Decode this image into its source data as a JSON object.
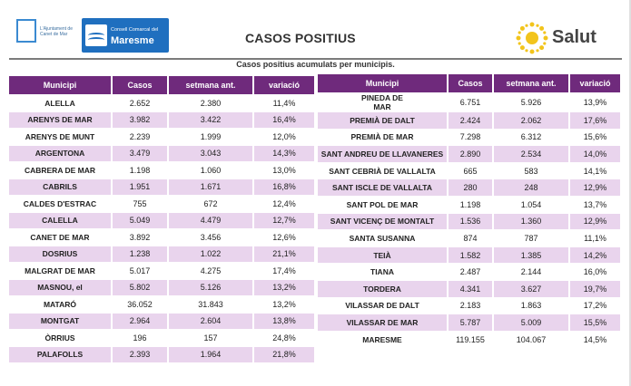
{
  "header": {
    "logo_ajuntament_text": "L'Ajuntament de Canet de Mar",
    "logo_consell_small": "Consell Comarcal del",
    "logo_consell_big": "Maresme",
    "title": "CASOS POSITIUS",
    "salut_label": "Salut"
  },
  "subtitle": "Casos positius acumulats per municipis.",
  "columns": [
    "Municipi",
    "Casos",
    "setmana ant.",
    "variació"
  ],
  "colors": {
    "header_purple": "#6f2a7c",
    "row_alt": "#e9d4ed",
    "sun_yellow": "#f2c41c"
  },
  "left_rows": [
    {
      "municipi": "ALELLA",
      "casos": "2.652",
      "setmana": "2.380",
      "variacio": "11,4%"
    },
    {
      "municipi": "ARENYS DE MAR",
      "casos": "3.982",
      "setmana": "3.422",
      "variacio": "16,4%"
    },
    {
      "municipi": "ARENYS DE MUNT",
      "casos": "2.239",
      "setmana": "1.999",
      "variacio": "12,0%"
    },
    {
      "municipi": "ARGENTONA",
      "casos": "3.479",
      "setmana": "3.043",
      "variacio": "14,3%"
    },
    {
      "municipi": "CABRERA DE MAR",
      "casos": "1.198",
      "setmana": "1.060",
      "variacio": "13,0%"
    },
    {
      "municipi": "CABRILS",
      "casos": "1.951",
      "setmana": "1.671",
      "variacio": "16,8%"
    },
    {
      "municipi": "CALDES D'ESTRAC",
      "casos": "755",
      "setmana": "672",
      "variacio": "12,4%"
    },
    {
      "municipi": "CALELLA",
      "casos": "5.049",
      "setmana": "4.479",
      "variacio": "12,7%"
    },
    {
      "municipi": "CANET DE MAR",
      "casos": "3.892",
      "setmana": "3.456",
      "variacio": "12,6%"
    },
    {
      "municipi": "DOSRIUS",
      "casos": "1.238",
      "setmana": "1.022",
      "variacio": "21,1%"
    },
    {
      "municipi": "MALGRAT DE MAR",
      "casos": "5.017",
      "setmana": "4.275",
      "variacio": "17,4%"
    },
    {
      "municipi": "MASNOU, el",
      "casos": "5.802",
      "setmana": "5.126",
      "variacio": "13,2%"
    },
    {
      "municipi": "MATARÓ",
      "casos": "36.052",
      "setmana": "31.843",
      "variacio": "13,2%"
    },
    {
      "municipi": "MONTGAT",
      "casos": "2.964",
      "setmana": "2.604",
      "variacio": "13,8%"
    },
    {
      "municipi": "ÒRRIUS",
      "casos": "196",
      "setmana": "157",
      "variacio": "24,8%"
    },
    {
      "municipi": "PALAFOLLS",
      "casos": "2.393",
      "setmana": "1.964",
      "variacio": "21,8%"
    }
  ],
  "right_rows": [
    {
      "municipi": "PINEDA DE\nMAR",
      "casos": "6.751",
      "setmana": "5.926",
      "variacio": "13,9%"
    },
    {
      "municipi": "PREMIÀ DE DALT",
      "casos": "2.424",
      "setmana": "2.062",
      "variacio": "17,6%"
    },
    {
      "municipi": "PREMIÀ DE MAR",
      "casos": "7.298",
      "setmana": "6.312",
      "variacio": "15,6%"
    },
    {
      "municipi": "SANT ANDREU DE LLAVANERES",
      "casos": "2.890",
      "setmana": "2.534",
      "variacio": "14,0%"
    },
    {
      "municipi": "SANT CEBRIÀ DE VALLALTA",
      "casos": "665",
      "setmana": "583",
      "variacio": "14,1%"
    },
    {
      "municipi": "SANT ISCLE DE VALLALTA",
      "casos": "280",
      "setmana": "248",
      "variacio": "12,9%"
    },
    {
      "municipi": "SANT POL DE MAR",
      "casos": "1.198",
      "setmana": "1.054",
      "variacio": "13,7%"
    },
    {
      "municipi": "SANT VICENÇ DE MONTALT",
      "casos": "1.536",
      "setmana": "1.360",
      "variacio": "12,9%"
    },
    {
      "municipi": "SANTA SUSANNA",
      "casos": "874",
      "setmana": "787",
      "variacio": "11,1%"
    },
    {
      "municipi": "TEIÀ",
      "casos": "1.582",
      "setmana": "1.385",
      "variacio": "14,2%"
    },
    {
      "municipi": "TIANA",
      "casos": "2.487",
      "setmana": "2.144",
      "variacio": "16,0%"
    },
    {
      "municipi": "TORDERA",
      "casos": "4.341",
      "setmana": "3.627",
      "variacio": "19,7%"
    },
    {
      "municipi": "VILASSAR DE DALT",
      "casos": "2.183",
      "setmana": "1.863",
      "variacio": "17,2%"
    },
    {
      "municipi": "VILASSAR DE MAR",
      "casos": "5.787",
      "setmana": "5.009",
      "variacio": "15,5%"
    },
    {
      "municipi": "MARESME",
      "casos": "119.155",
      "setmana": "104.067",
      "variacio": "14,5%"
    }
  ]
}
